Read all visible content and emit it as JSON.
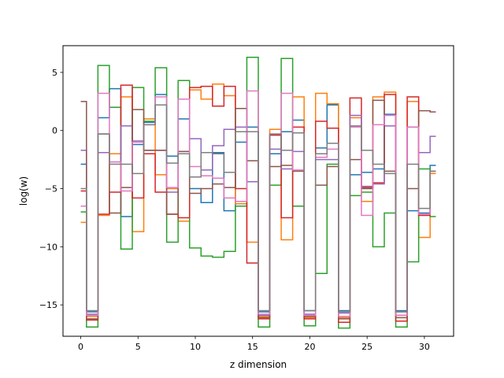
{
  "chart_data": {
    "type": "line",
    "step": "mid",
    "title": "",
    "xlabel": "z dimension",
    "ylabel": "log(w)",
    "xlim": [
      -1.55,
      32.55
    ],
    "ylim": [
      -17.7,
      7.3
    ],
    "xticks": [
      0,
      5,
      10,
      15,
      20,
      25,
      30
    ],
    "yticks": [
      -15,
      -10,
      -5,
      0,
      5
    ],
    "ytick_labels": [
      "−15",
      "−10",
      "−5",
      "0",
      "5"
    ],
    "grid": false,
    "x": [
      0,
      1,
      2,
      3,
      4,
      5,
      6,
      7,
      8,
      9,
      10,
      11,
      12,
      13,
      14,
      15,
      16,
      17,
      18,
      19,
      20,
      21,
      22,
      23,
      24,
      25,
      26,
      27,
      28,
      29,
      30,
      31
    ],
    "series": [
      {
        "color": "#1f77b4",
        "values": [
          -2.9,
          -15.6,
          1.1,
          3.6,
          -7.4,
          -1.2,
          0.7,
          3.1,
          -2.2,
          1.0,
          -5.0,
          -6.2,
          -1.9,
          -6.9,
          -1.0,
          0.3,
          -15.6,
          -2.0,
          -0.1,
          0.9,
          -15.5,
          -1.5,
          2.2,
          -15.5,
          -3.8,
          -3.6,
          -3.3,
          1.4,
          -15.5,
          -6.9,
          -7.1,
          -3.0
        ]
      },
      {
        "color": "#ff7f0e",
        "values": [
          -7.9,
          -16.0,
          -7.3,
          -2.0,
          2.9,
          -8.7,
          1.0,
          -3.8,
          -5.0,
          -7.8,
          3.5,
          2.7,
          4.0,
          3.0,
          -6.3,
          -9.6,
          -16.0,
          0.1,
          -9.4,
          2.9,
          -16.1,
          3.2,
          2.3,
          -16.1,
          1.1,
          -6.1,
          2.9,
          3.3,
          -15.9,
          2.5,
          -9.2,
          -3.7
        ]
      },
      {
        "color": "#2ca02c",
        "values": [
          -7.0,
          -16.9,
          5.6,
          2.0,
          -10.2,
          3.7,
          0.8,
          5.4,
          -9.6,
          4.3,
          -10.1,
          -10.8,
          -10.9,
          -10.4,
          -6.5,
          6.3,
          -16.9,
          -4.7,
          6.2,
          -6.5,
          -16.8,
          -12.3,
          -2.9,
          -17.0,
          -5.6,
          -5.3,
          -10.0,
          -7.1,
          -16.9,
          -11.3,
          -3.3,
          -7.4
        ]
      },
      {
        "color": "#d62728",
        "values": [
          -5.2,
          -16.3,
          -7.2,
          -5.3,
          3.9,
          -5.8,
          -2.0,
          -5.3,
          -7.2,
          -7.5,
          3.7,
          3.8,
          2.1,
          3.8,
          -5.0,
          -11.4,
          -16.2,
          -0.4,
          -7.5,
          0.3,
          -16.2,
          0.8,
          0.2,
          -16.5,
          2.8,
          -4.9,
          -4.5,
          3.1,
          -16.4,
          2.9,
          -7.3,
          -3.5
        ]
      },
      {
        "color": "#9467bd",
        "values": [
          -1.7,
          -15.8,
          -1.9,
          -2.7,
          0.4,
          -0.9,
          -1.7,
          -1.7,
          -5.3,
          -1.8,
          -0.7,
          -3.4,
          -1.3,
          0.1,
          0.3,
          -4.4,
          -15.9,
          -1.6,
          -3.3,
          -1.8,
          -15.8,
          -2.5,
          -2.5,
          -15.7,
          1.3,
          -4.8,
          -4.6,
          0.4,
          -15.6,
          0.3,
          -1.9,
          -0.5
        ]
      },
      {
        "color": "#8c564b",
        "values": [
          2.5,
          -16.2,
          -0.3,
          -7.1,
          -4.9,
          1.8,
          -1.7,
          -1.7,
          -7.2,
          -1.8,
          -5.4,
          -5.0,
          -4.6,
          -4.9,
          1.9,
          -2.6,
          -16.1,
          -3.1,
          -3.0,
          -3.5,
          -16.0,
          -4.7,
          -3.1,
          -16.2,
          -2.5,
          -5.0,
          2.6,
          -3.5,
          -16.1,
          -5.0,
          1.7,
          1.6
        ]
      },
      {
        "color": "#e377c2",
        "values": [
          -6.5,
          -15.9,
          3.2,
          -2.7,
          -5.2,
          -1.0,
          0.5,
          2.9,
          -4.9,
          2.7,
          -3.1,
          -3.9,
          -4.1,
          -5.8,
          -6.1,
          3.4,
          -15.8,
          -0.3,
          3.2,
          -3.4,
          -15.9,
          -2.3,
          -1.6,
          -16.0,
          0.3,
          -7.3,
          0.5,
          1.3,
          -15.9,
          0.3,
          -7.2,
          -3.5
        ]
      },
      {
        "color": "#7f7f7f",
        "values": [
          -5.0,
          -15.5,
          -0.3,
          -2.9,
          -2.9,
          -3.7,
          0.5,
          2.2,
          -2.8,
          -2.0,
          -4.0,
          -1.9,
          -2.0,
          -3.6,
          -0.1,
          -0.1,
          -15.5,
          -0.3,
          -1.7,
          -0.2,
          -15.5,
          -2.0,
          -1.1,
          -15.6,
          0.4,
          -1.7,
          -2.9,
          -3.7,
          -15.6,
          -2.9,
          -6.7,
          -3.5
        ]
      }
    ]
  }
}
